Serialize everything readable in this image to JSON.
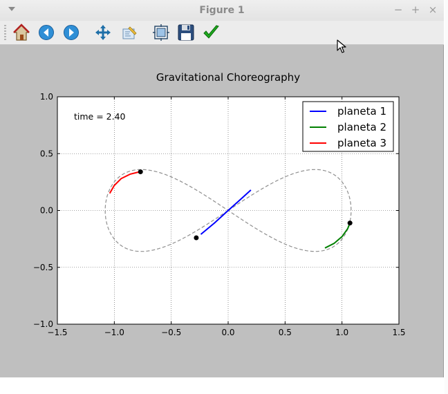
{
  "window": {
    "title": "Figure 1",
    "controls": {
      "minimize": "−",
      "maximize": "+",
      "close": "×"
    }
  },
  "toolbar": {
    "buttons": [
      {
        "name": "home-button",
        "icon": "home-icon"
      },
      {
        "name": "back-button",
        "icon": "arrow-left-icon"
      },
      {
        "name": "forward-button",
        "icon": "arrow-right-icon"
      },
      {
        "name": "pan-button",
        "icon": "move-icon"
      },
      {
        "name": "zoom-button",
        "icon": "zoom-rect-icon"
      },
      {
        "name": "subplots-button",
        "icon": "subplots-icon"
      },
      {
        "name": "save-button",
        "icon": "floppy-icon"
      },
      {
        "name": "edit-button",
        "icon": "checkmark-icon"
      }
    ]
  },
  "chart_data": {
    "type": "line",
    "title": "Gravitational Choreography",
    "annotation": "time = 2.40",
    "xlim": [
      -1.5,
      1.5
    ],
    "ylim": [
      -1.0,
      1.0
    ],
    "xticks": [
      "−1.5",
      "−1.0",
      "−0.5",
      "0.0",
      "0.5",
      "1.0",
      "1.5"
    ],
    "yticks": [
      "−1.0",
      "−0.5",
      "0.0",
      "0.5",
      "1.0"
    ],
    "xtick_values": [
      -1.5,
      -1.0,
      -0.5,
      0.0,
      0.5,
      1.0,
      1.5
    ],
    "ytick_values": [
      -1.0,
      -0.5,
      0.0,
      0.5,
      1.0
    ],
    "grid": true,
    "legend_position": "top-right",
    "orbit": {
      "style": "dashed",
      "color": "#8f8f8f",
      "shape": "figure-eight",
      "x_half_width": 1.08,
      "y_half_height": 0.36
    },
    "series": [
      {
        "name": "planeta 1",
        "color": "#0000ff",
        "trail": [
          [
            -0.24,
            -0.21
          ],
          [
            -0.12,
            -0.11
          ],
          [
            0.0,
            0.0
          ],
          [
            0.1,
            0.09
          ],
          [
            0.2,
            0.18
          ]
        ],
        "position": [
          -0.28,
          -0.24
        ]
      },
      {
        "name": "planeta 2",
        "color": "#008000",
        "trail": [
          [
            0.85,
            -0.33
          ],
          [
            0.93,
            -0.29
          ],
          [
            1.0,
            -0.23
          ],
          [
            1.05,
            -0.16
          ],
          [
            1.07,
            -0.11
          ]
        ],
        "position": [
          1.07,
          -0.11
        ]
      },
      {
        "name": "planeta 3",
        "color": "#ff0000",
        "trail": [
          [
            -1.04,
            0.15
          ],
          [
            -1.0,
            0.22
          ],
          [
            -0.94,
            0.28
          ],
          [
            -0.86,
            0.32
          ],
          [
            -0.78,
            0.34
          ]
        ],
        "position": [
          -0.77,
          0.34
        ]
      }
    ]
  }
}
